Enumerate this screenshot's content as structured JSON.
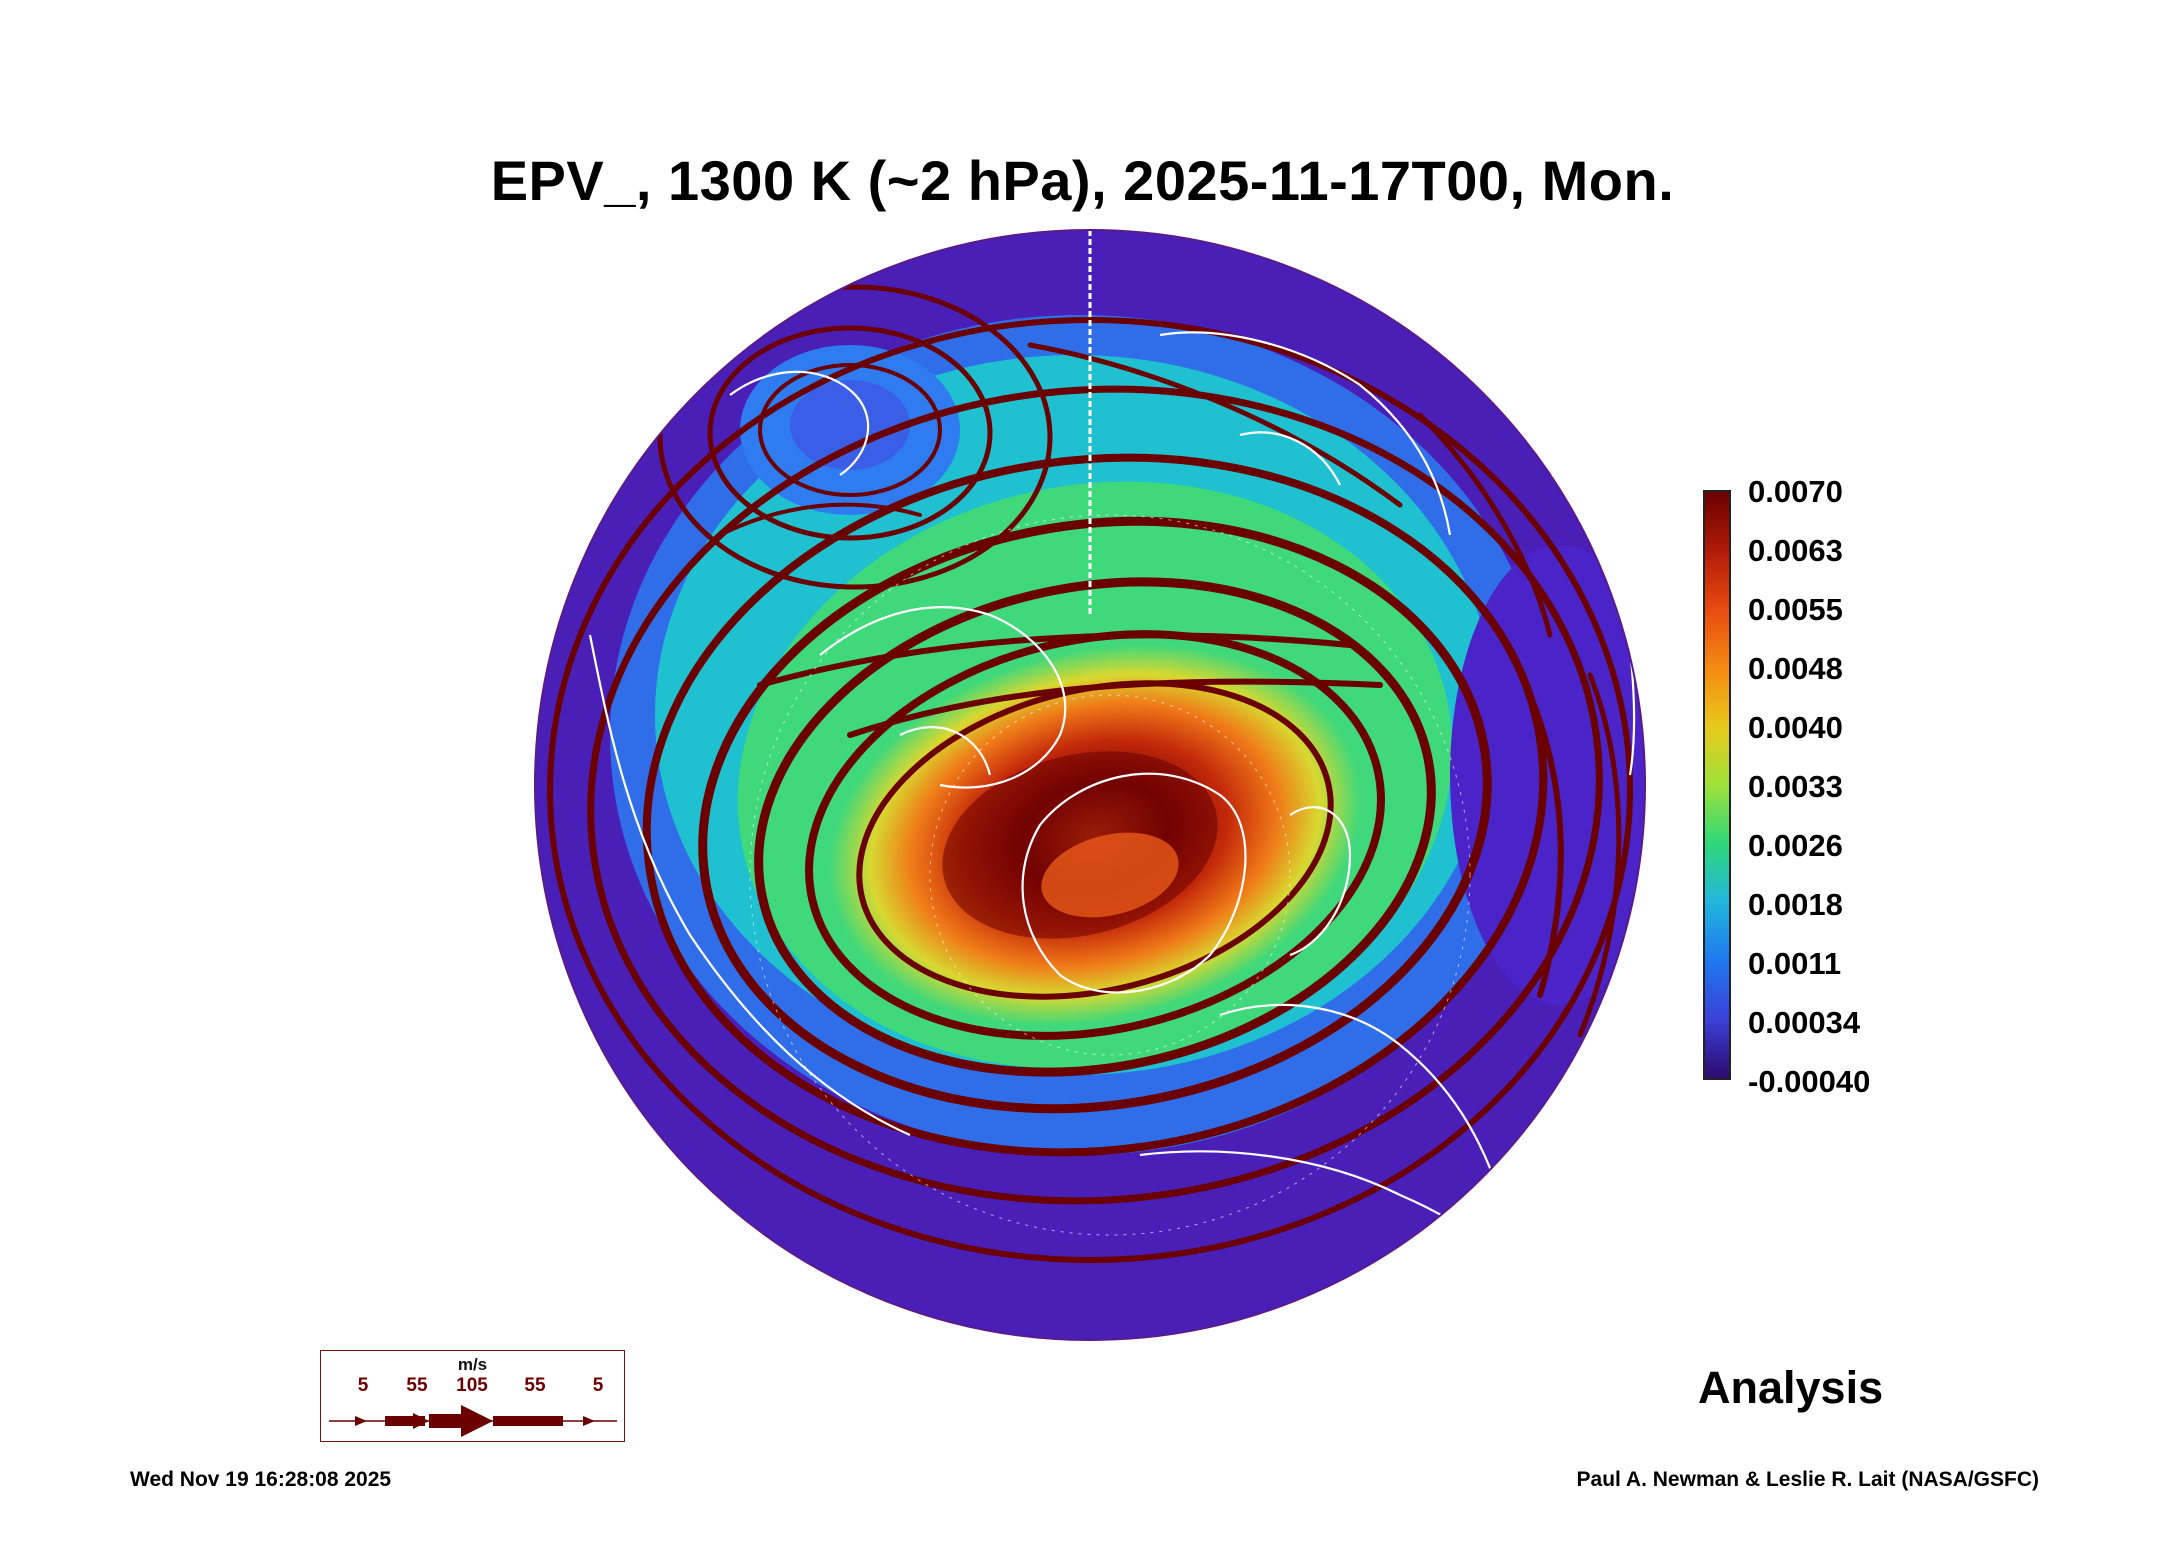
{
  "title": "EPV_, 1300 K (~2 hPa), 2025-11-17T00, Mon.",
  "colorbar": {
    "labels": [
      "0.0070",
      "0.0063",
      "0.0055",
      "0.0048",
      "0.0040",
      "0.0033",
      "0.0026",
      "0.0018",
      "0.0011",
      "0.00034",
      "-0.00040"
    ],
    "colors": [
      "#6b0000",
      "#b01a08",
      "#e84a10",
      "#f58a12",
      "#e8c81a",
      "#9ee23a",
      "#2fd77a",
      "#22b6dd",
      "#1f78f0",
      "#3a40d8",
      "#2d0a6e"
    ]
  },
  "wind_legend": {
    "unit": "m/s",
    "speeds": [
      "5",
      "55",
      "105",
      "55",
      "5"
    ]
  },
  "mode_label": "Analysis",
  "timestamp": "Wed Nov 19 16:28:08 2025",
  "credit": "Paul A. Newman & Leslie R. Lait (NASA/GSFC)",
  "map": {
    "projection": "orthographic north polar",
    "field_colors": {
      "outer": "#4a1fb8",
      "ring_blue": "#2f6ee8",
      "ring_cyan": "#1fc0d0",
      "ring_green": "#3fd87a",
      "ring_yellow": "#d8d830",
      "ring_orange": "#f07a18",
      "core_red": "#c42a0a",
      "core_dark": "#6b0000",
      "streamline": "#6b0000",
      "coastline": "#ffffff"
    }
  }
}
